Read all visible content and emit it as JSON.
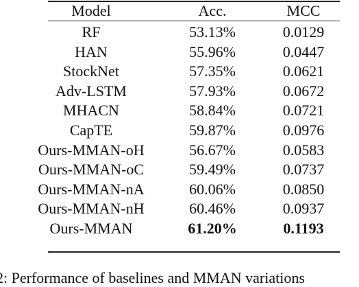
{
  "table": {
    "header": [
      "Model",
      "Acc.",
      "MCC"
    ],
    "rows": [
      [
        "RF",
        "53.13%",
        "0.0129"
      ],
      [
        "HAN",
        "55.96%",
        "0.0447"
      ],
      [
        "StockNet",
        "57.35%",
        "0.0621"
      ],
      [
        "Adv-LSTM",
        "57.93%",
        "0.0672"
      ],
      [
        "MHACN",
        "58.84%",
        "0.0721"
      ],
      [
        "CapTE",
        "59.87%",
        "0.0976"
      ],
      [
        "Ours-MMAN-oH",
        "56.67%",
        "0.0583"
      ],
      [
        "Ours-MMAN-oC",
        "59.49%",
        "0.0737"
      ],
      [
        "Ours-MMAN-nA",
        "60.06%",
        "0.0850"
      ],
      [
        "Ours-MMAN-nH",
        "60.46%",
        "0.0937"
      ],
      [
        "Ours-MMAN",
        "61.20%",
        "0.1193"
      ]
    ]
  },
  "caption": "2: Performance of baselines and MMAN variations"
}
